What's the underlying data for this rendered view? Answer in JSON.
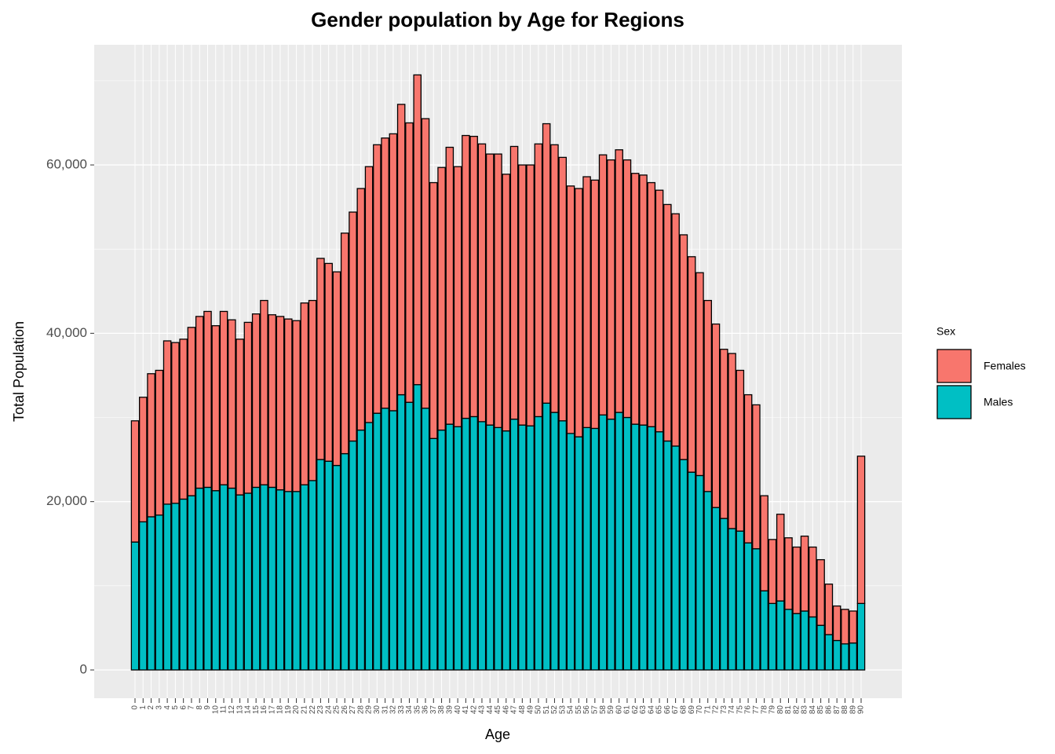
{
  "chart_data": {
    "type": "stacked_bar",
    "title": "Gender population by Age for Regions",
    "x_label": "Age",
    "y_label": "Total Population",
    "legend_title": "Sex",
    "categories": [
      "0",
      "1",
      "2",
      "3",
      "4",
      "5",
      "6",
      "7",
      "8",
      "9",
      "10",
      "11",
      "12",
      "13",
      "14",
      "15",
      "16",
      "17",
      "18",
      "19",
      "20",
      "21",
      "22",
      "23",
      "24",
      "25",
      "26",
      "27",
      "28",
      "29",
      "30",
      "31",
      "32",
      "33",
      "34",
      "35",
      "36",
      "37",
      "38",
      "39",
      "40",
      "41",
      "42",
      "43",
      "44",
      "45",
      "46",
      "47",
      "48",
      "49",
      "50",
      "51",
      "52",
      "53",
      "54",
      "55",
      "56",
      "57",
      "58",
      "59",
      "60",
      "61",
      "62",
      "63",
      "64",
      "65",
      "66",
      "67",
      "68",
      "69",
      "70",
      "71",
      "72",
      "73",
      "74",
      "75",
      "76",
      "77",
      "78",
      "79",
      "80",
      "81",
      "82",
      "83",
      "84",
      "85",
      "86",
      "87",
      "88",
      "89",
      "90"
    ],
    "series": [
      {
        "name": "Females",
        "color": "#F8766D",
        "values": [
          14400,
          14800,
          17000,
          17200,
          19400,
          19100,
          19000,
          20000,
          20400,
          20900,
          19600,
          20600,
          20000,
          18500,
          20300,
          20600,
          21900,
          20500,
          20600,
          20500,
          20300,
          21600,
          21400,
          23900,
          23500,
          23000,
          26200,
          27200,
          28700,
          30400,
          31900,
          32100,
          32900,
          34500,
          33200,
          36800,
          34400,
          30400,
          31200,
          32900,
          30900,
          33600,
          33300,
          33000,
          32200,
          32500,
          30500,
          32400,
          30900,
          31000,
          32400,
          33200,
          31800,
          31300,
          29400,
          29500,
          29800,
          29500,
          30900,
          30800,
          31200,
          30600,
          29800,
          29700,
          29000,
          28700,
          28100,
          27600,
          26700,
          25600,
          24100,
          22700,
          21800,
          20100,
          20800,
          19100,
          17600,
          17100,
          11300,
          7600,
          10300,
          8500,
          7900,
          8900,
          8300,
          7800,
          6000,
          4100,
          4100,
          3800,
          17500
        ]
      },
      {
        "name": "Males",
        "color": "#00BFC4",
        "values": [
          15200,
          17600,
          18200,
          18400,
          19700,
          19800,
          20300,
          20700,
          21600,
          21700,
          21300,
          22000,
          21600,
          20800,
          21000,
          21700,
          22000,
          21700,
          21400,
          21200,
          21200,
          22000,
          22500,
          25000,
          24800,
          24300,
          25700,
          27200,
          28500,
          29400,
          30500,
          31100,
          30800,
          32700,
          31800,
          33900,
          31100,
          27500,
          28500,
          29200,
          28900,
          29900,
          30100,
          29500,
          29100,
          28800,
          28400,
          29800,
          29100,
          29000,
          30100,
          31700,
          30600,
          29600,
          28100,
          27700,
          28800,
          28700,
          30300,
          29800,
          30600,
          30000,
          29200,
          29100,
          28900,
          28300,
          27200,
          26600,
          25000,
          23500,
          23100,
          21200,
          19300,
          18000,
          16800,
          16500,
          15100,
          14400,
          9400,
          7900,
          8200,
          7200,
          6700,
          7000,
          6300,
          5300,
          4200,
          3500,
          3100,
          3200,
          7900
        ]
      }
    ],
    "ylim": [
      -3360,
      74280
    ],
    "yticks": [
      0,
      {
        "value": 20000,
        "label": "20,000"
      },
      {
        "value": 40000,
        "label": "40,000"
      },
      {
        "value": 60000,
        "label": "60,000"
      }
    ],
    "grid": true
  }
}
